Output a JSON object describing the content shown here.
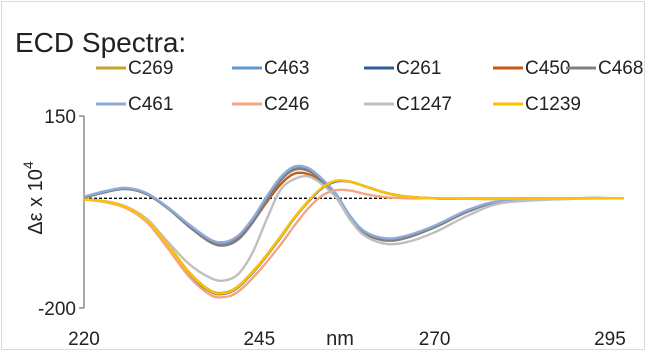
{
  "chart_data": {
    "type": "line",
    "title": "ECD Spectra:",
    "xlabel": "nm",
    "ylabel": "Δε x 10",
    "ylabel_superscript": "4",
    "xlim": [
      220,
      297
    ],
    "ylim": [
      -200,
      150
    ],
    "xticks": [
      "220",
      "245",
      "270",
      "295"
    ],
    "yticks": [
      "150",
      "-200"
    ],
    "zero_line": "dashed",
    "legend_position": "top",
    "series": [
      {
        "name": "C269",
        "color": "#c9a227",
        "x": [
          220,
          223,
          226,
          229,
          232,
          235,
          238,
          240,
          242,
          245,
          248,
          250,
          252,
          254,
          256,
          258,
          260,
          263,
          266,
          270,
          275,
          280,
          285,
          290,
          297
        ],
        "y": [
          -2,
          -6,
          -16,
          -40,
          -85,
          -135,
          -168,
          -172,
          -160,
          -120,
          -70,
          -35,
          -5,
          20,
          32,
          30,
          22,
          10,
          3,
          0,
          -1,
          -1,
          0,
          0,
          0
        ]
      },
      {
        "name": "C463",
        "color": "#5b9bd5",
        "x": [
          220,
          223,
          226,
          229,
          232,
          235,
          238,
          240,
          242,
          244,
          246,
          248,
          250,
          252,
          254,
          256,
          258,
          260,
          263,
          266,
          270,
          275,
          280,
          290,
          297
        ],
        "y": [
          2,
          12,
          18,
          8,
          -18,
          -50,
          -78,
          -83,
          -72,
          -42,
          -2,
          35,
          55,
          52,
          33,
          5,
          -35,
          -62,
          -75,
          -70,
          -52,
          -22,
          -5,
          0,
          0
        ]
      },
      {
        "name": "C261",
        "color": "#2e5b9a",
        "x": [
          220,
          223,
          226,
          229,
          232,
          235,
          238,
          240,
          242,
          245,
          248,
          250,
          252,
          254,
          256,
          258,
          260,
          263,
          266,
          270,
          275,
          280,
          285,
          290,
          297
        ],
        "y": [
          -2,
          -6,
          -17,
          -42,
          -88,
          -138,
          -170,
          -174,
          -162,
          -122,
          -72,
          -36,
          -6,
          19,
          31,
          30,
          22,
          10,
          3,
          0,
          -1,
          -1,
          0,
          0,
          0
        ]
      },
      {
        "name": "C450",
        "color": "#c55a11",
        "x": [
          220,
          223,
          226,
          229,
          232,
          235,
          238,
          240,
          242,
          244,
          246,
          248,
          250,
          252,
          254,
          256,
          258,
          260,
          263,
          266,
          270,
          275,
          280,
          290,
          297
        ],
        "y": [
          2,
          12,
          18,
          8,
          -18,
          -50,
          -76,
          -80,
          -70,
          -44,
          -8,
          25,
          45,
          44,
          28,
          3,
          -35,
          -62,
          -74,
          -70,
          -52,
          -22,
          -5,
          0,
          0
        ]
      },
      {
        "name": "C468",
        "color": "#7f7f7f",
        "x": [
          220,
          223,
          226,
          229,
          232,
          235,
          238,
          240,
          242,
          244,
          246,
          248,
          250,
          252,
          254,
          256,
          258,
          260,
          263,
          266,
          270,
          275,
          280,
          290,
          297
        ],
        "y": [
          1,
          11,
          17,
          7,
          -19,
          -52,
          -80,
          -86,
          -75,
          -45,
          -5,
          32,
          52,
          50,
          31,
          3,
          -37,
          -64,
          -77,
          -72,
          -53,
          -23,
          -5,
          0,
          0
        ]
      },
      {
        "name": "C461",
        "color": "#8faadc",
        "x": [
          220,
          223,
          226,
          229,
          232,
          235,
          238,
          240,
          242,
          244,
          246,
          248,
          250,
          252,
          254,
          256,
          258,
          260,
          263,
          266,
          270,
          275,
          280,
          290,
          297
        ],
        "y": [
          3,
          13,
          19,
          9,
          -17,
          -48,
          -75,
          -80,
          -68,
          -38,
          2,
          38,
          58,
          55,
          35,
          7,
          -33,
          -60,
          -73,
          -68,
          -50,
          -20,
          -4,
          0,
          0
        ]
      },
      {
        "name": "C246",
        "color": "#f4a582",
        "x": [
          220,
          223,
          226,
          229,
          232,
          235,
          238,
          240,
          242,
          245,
          248,
          250,
          252,
          254,
          256,
          258,
          260,
          263,
          266,
          270,
          275,
          280,
          285,
          290,
          297
        ],
        "y": [
          -2,
          -7,
          -18,
          -44,
          -92,
          -143,
          -176,
          -180,
          -170,
          -132,
          -85,
          -50,
          -18,
          5,
          15,
          14,
          8,
          2,
          0,
          0,
          0,
          0,
          0,
          0,
          0
        ]
      },
      {
        "name": "C1247",
        "color": "#bfbfbf",
        "x": [
          220,
          223,
          226,
          229,
          232,
          235,
          238,
          240,
          242,
          244,
          246,
          248,
          250,
          252,
          254,
          256,
          258,
          260,
          263,
          266,
          270,
          275,
          280,
          290,
          297
        ],
        "y": [
          -2,
          -5,
          -15,
          -38,
          -80,
          -120,
          -145,
          -150,
          -138,
          -100,
          -40,
          15,
          35,
          40,
          25,
          0,
          -40,
          -68,
          -83,
          -80,
          -62,
          -30,
          -8,
          -1,
          0
        ]
      },
      {
        "name": "C1239",
        "color": "#ffc000",
        "x": [
          220,
          223,
          226,
          229,
          232,
          235,
          238,
          240,
          242,
          245,
          248,
          250,
          252,
          254,
          256,
          258,
          260,
          263,
          266,
          270,
          275,
          280,
          285,
          290,
          297
        ],
        "y": [
          -2,
          -6,
          -16,
          -41,
          -86,
          -136,
          -169,
          -173,
          -161,
          -121,
          -71,
          -35,
          -5,
          20,
          32,
          30,
          22,
          10,
          3,
          0,
          -1,
          -1,
          0,
          0,
          0
        ]
      }
    ]
  }
}
